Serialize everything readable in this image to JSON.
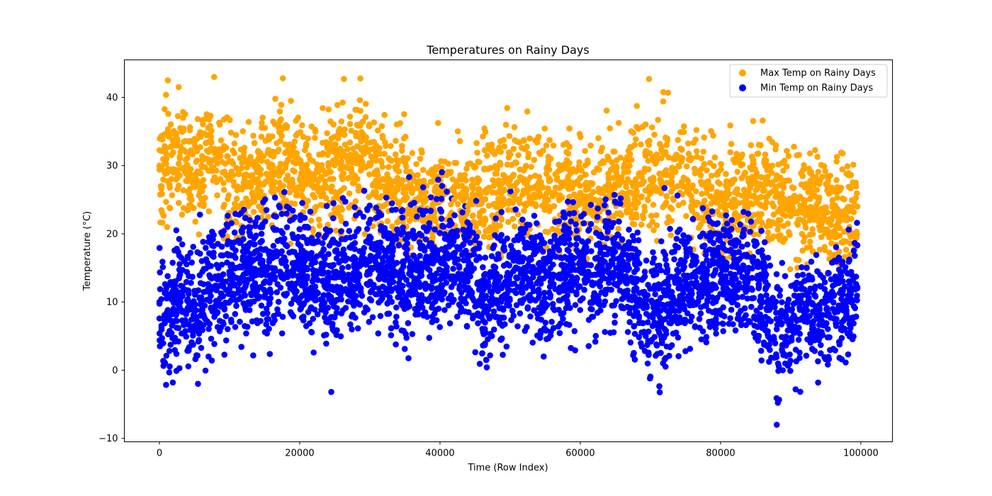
{
  "chart_data": {
    "type": "scatter",
    "title": "Temperatures on Rainy Days",
    "xlabel": "Time (Row Index)",
    "ylabel": "Temperature (°C)",
    "xlim": [
      -5000,
      104500
    ],
    "ylim": [
      -10.5,
      45.5
    ],
    "x_ticks": [
      0,
      20000,
      40000,
      60000,
      80000,
      100000
    ],
    "x_tick_labels": [
      "0",
      "20000",
      "40000",
      "60000",
      "80000",
      "100000"
    ],
    "y_ticks": [
      -10,
      0,
      10,
      20,
      30,
      40
    ],
    "y_tick_labels": [
      "−10",
      "0",
      "10",
      "20",
      "30",
      "40"
    ],
    "grid": false,
    "legend_position": "top-right",
    "series": [
      {
        "name": "Max Temp on Rainy Days",
        "color": "#ffa500",
        "x": [
          0,
          1000,
          2000,
          3000,
          4000,
          5000,
          6000,
          7000,
          8000,
          9000,
          10000,
          12000,
          14000,
          16000,
          18000,
          20000,
          22000,
          24000,
          26000,
          28000,
          30000,
          32000,
          34000,
          36000,
          38000,
          40000,
          42000,
          44000,
          46000,
          48000,
          50000,
          52000,
          54000,
          56000,
          58000,
          60000,
          62000,
          64000,
          66000,
          68000,
          70000,
          72000,
          74000,
          76000,
          78000,
          80000,
          82000,
          84000,
          86000,
          88000,
          90000,
          92000,
          94000,
          96000,
          98000,
          99500,
          1200,
          7800,
          17600,
          26300,
          69800
        ],
        "y": [
          30,
          31,
          29,
          32,
          30,
          28,
          30,
          32,
          31,
          29,
          28,
          27,
          28,
          29,
          30,
          28,
          27,
          29,
          30,
          31,
          30,
          28,
          27,
          26,
          25,
          26,
          25,
          24,
          25,
          26,
          27,
          28,
          27,
          26,
          27,
          26,
          25,
          27,
          26,
          27,
          28,
          29,
          30,
          27,
          26,
          24,
          25,
          26,
          27,
          26,
          25,
          24,
          25,
          23,
          22,
          24,
          42.5,
          43,
          42.8,
          42.7,
          42.7
        ]
      },
      {
        "name": "Min Temp on Rainy Days",
        "color": "#0000ff",
        "x": [
          0,
          1000,
          2000,
          3000,
          4000,
          5000,
          6000,
          7000,
          8000,
          9000,
          10000,
          12000,
          14000,
          16000,
          18000,
          20000,
          22000,
          24000,
          26000,
          28000,
          30000,
          32000,
          34000,
          36000,
          38000,
          40000,
          42000,
          44000,
          46000,
          48000,
          50000,
          52000,
          54000,
          56000,
          58000,
          60000,
          62000,
          64000,
          66000,
          68000,
          70000,
          72000,
          74000,
          76000,
          78000,
          80000,
          82000,
          84000,
          86000,
          88000,
          90000,
          92000,
          94000,
          96000,
          98000,
          99500,
          5500,
          24500,
          88000,
          72000,
          29200
        ],
        "y": [
          10,
          8,
          9,
          10,
          9,
          8,
          10,
          12,
          12,
          13,
          14,
          14,
          14,
          15,
          16,
          15,
          14,
          13,
          14,
          15,
          16,
          15,
          14,
          15,
          16,
          16,
          17,
          16,
          10,
          12,
          14,
          15,
          13,
          14,
          15,
          15,
          14,
          15,
          16,
          12,
          8,
          9,
          12,
          14,
          13,
          14,
          14,
          15,
          10,
          6,
          7,
          8,
          8,
          9,
          10,
          12,
          -2,
          -3.2,
          -8,
          26.7,
          26.3
        ]
      }
    ]
  }
}
